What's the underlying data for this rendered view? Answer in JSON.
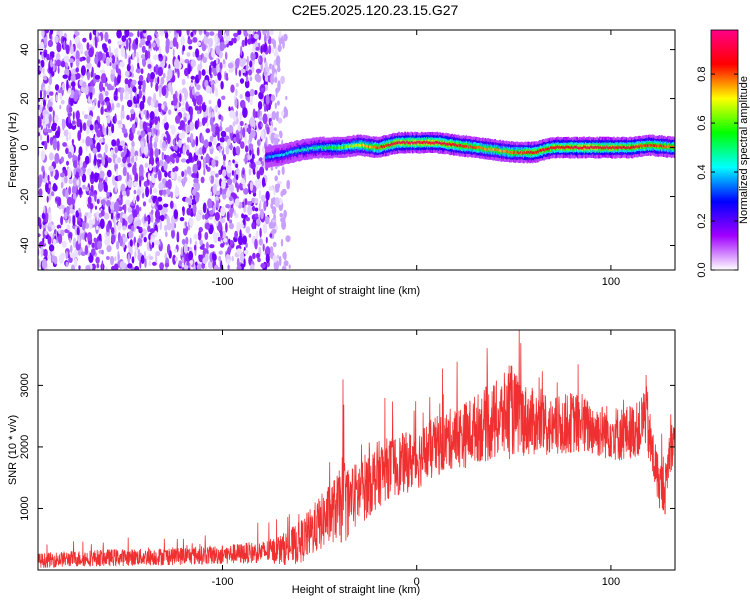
{
  "title": "C2E5.2025.120.23.15.G27",
  "chart_data": [
    {
      "type": "heatmap",
      "xlabel": "Height of straight line (km)",
      "ylabel": "Frequency (Hz)",
      "xlim": [
        -195,
        133
      ],
      "ylim": [
        -50,
        48
      ],
      "x_ticks": [
        -100,
        0,
        100
      ],
      "x_tick_labels": [
        "-100",
        "",
        "100"
      ],
      "y_ticks": [
        -40,
        -20,
        0,
        20,
        40
      ],
      "y_tick_labels": [
        "-40",
        "-20",
        "0",
        "20",
        "40"
      ],
      "colorbar": {
        "label": "Normalized spectral amplitude",
        "range": [
          0,
          0.98
        ],
        "ticks": [
          0.0,
          0.2,
          0.4,
          0.6,
          0.8
        ],
        "tick_labels": [
          "0.0",
          "0.2",
          "0.4",
          "0.6",
          "0.8"
        ],
        "colors": [
          "#ffffff",
          "#a000ff",
          "#0000ff",
          "#00ffff",
          "#00ff00",
          "#ffff00",
          "#ff0000",
          "#ff0088"
        ]
      },
      "noise_region": {
        "x_from": -195,
        "x_to": -75,
        "fade_to": -60
      },
      "signal_ridge": {
        "x": [
          -78,
          -70,
          -60,
          -50,
          -40,
          -30,
          -20,
          -10,
          0,
          10,
          20,
          30,
          40,
          50,
          60,
          70,
          80,
          90,
          100,
          110,
          120,
          133
        ],
        "freq": [
          -4,
          -3,
          -1,
          0,
          0,
          1,
          0,
          2,
          2,
          2,
          1,
          0,
          -1,
          -2,
          -2,
          0,
          0,
          0,
          0,
          0,
          1,
          0
        ],
        "amplitude": [
          0.35,
          0.4,
          0.45,
          0.5,
          0.6,
          0.7,
          0.8,
          0.9,
          0.92,
          0.9,
          0.85,
          0.8,
          0.75,
          0.8,
          0.85,
          0.85,
          0.9,
          0.9,
          0.88,
          0.85,
          0.82,
          0.8
        ]
      }
    },
    {
      "type": "line",
      "xlabel": "Height of straight line (km)",
      "ylabel": "SNR (10 * v/v)",
      "xlim": [
        -195,
        133
      ],
      "ylim": [
        0,
        3900
      ],
      "x_ticks": [
        -100,
        0,
        100
      ],
      "x_tick_labels": [
        "-100",
        "0",
        "100"
      ],
      "y_ticks": [
        1000,
        2000,
        3000
      ],
      "y_tick_labels": [
        "1000",
        "2000",
        "3000"
      ],
      "color": "#f03030",
      "series": [
        {
          "x": [
            -195,
            -180,
            -160,
            -140,
            -120,
            -100,
            -90,
            -80,
            -75,
            -70,
            -65,
            -60,
            -55,
            -50,
            -45,
            -40,
            -38,
            -35,
            -30,
            -25,
            -20,
            -15,
            -10,
            -5,
            0,
            5,
            10,
            15,
            20,
            25,
            30,
            35,
            40,
            45,
            48,
            50,
            55,
            60,
            65,
            70,
            75,
            80,
            85,
            90,
            95,
            100,
            105,
            110,
            115,
            118,
            120,
            122,
            125,
            128,
            130,
            133
          ],
          "values": [
            150,
            180,
            200,
            210,
            230,
            250,
            270,
            290,
            310,
            330,
            380,
            450,
            600,
            750,
            900,
            1050,
            1150,
            1100,
            1250,
            1400,
            1550,
            1650,
            1700,
            1750,
            1800,
            1900,
            2000,
            2100,
            2150,
            2200,
            2300,
            2350,
            2400,
            2500,
            2600,
            2550,
            2450,
            2400,
            2350,
            2300,
            2350,
            2400,
            2350,
            2300,
            2250,
            2250,
            2200,
            2250,
            2300,
            2600,
            2100,
            1800,
            1400,
            1300,
            1900,
            2200
          ],
          "spread": [
            120,
            130,
            140,
            140,
            150,
            160,
            170,
            180,
            200,
            250,
            300,
            350,
            400,
            450,
            500,
            550,
            800,
            550,
            550,
            550,
            550,
            500,
            500,
            500,
            500,
            500,
            500,
            500,
            500,
            550,
            550,
            600,
            650,
            700,
            800,
            700,
            600,
            550,
            500,
            500,
            500,
            500,
            500,
            450,
            450,
            450,
            450,
            450,
            450,
            600,
            500,
            450,
            400,
            400,
            400,
            400
          ]
        }
      ]
    }
  ]
}
